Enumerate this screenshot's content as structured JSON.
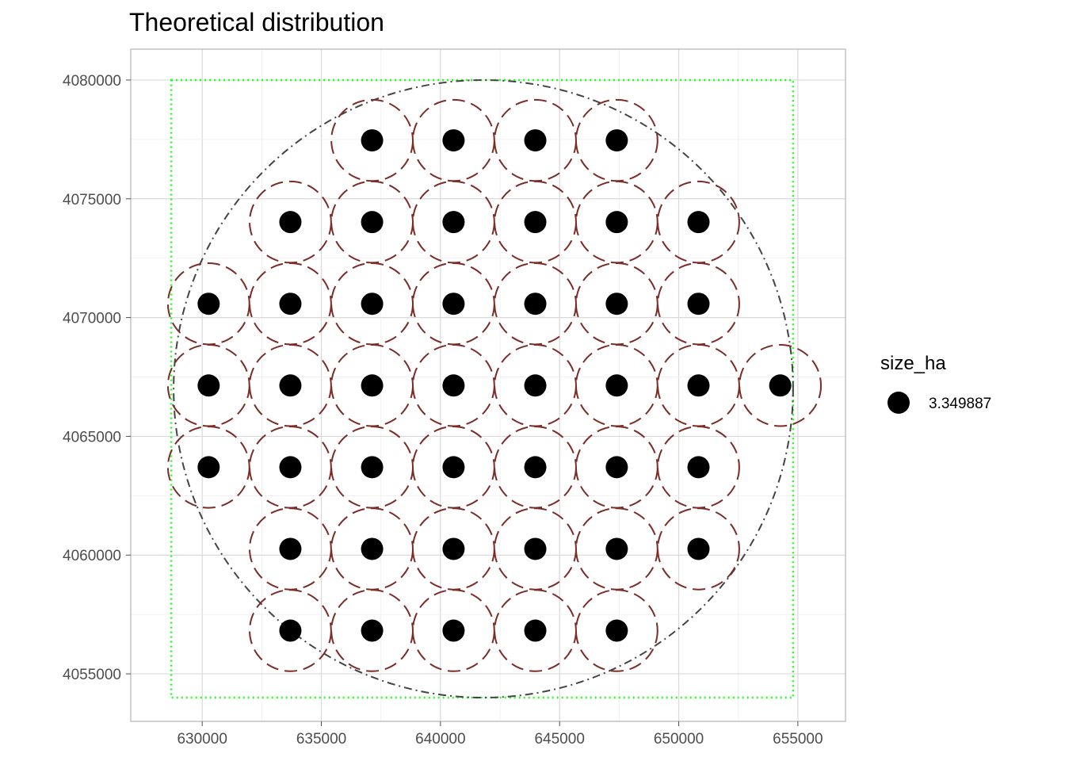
{
  "chart_data": {
    "type": "scatter",
    "title": "Theoretical distribution",
    "xlabel": "",
    "ylabel": "",
    "xlim": [
      627000,
      657000
    ],
    "ylim": [
      4053000,
      4081300
    ],
    "x_ticks": [
      630000,
      635000,
      640000,
      645000,
      650000,
      655000
    ],
    "y_ticks": [
      4055000,
      4060000,
      4065000,
      4070000,
      4075000,
      4080000
    ],
    "x_tick_labels": [
      "630000",
      "635000",
      "640000",
      "645000",
      "650000",
      "655000"
    ],
    "y_tick_labels": [
      "4055000",
      "4060000",
      "4065000",
      "4070000",
      "4075000",
      "4080000"
    ],
    "grid": true,
    "legend": {
      "title": "size_ha",
      "placement": "right",
      "entries": [
        {
          "label": "3.349887"
        }
      ]
    },
    "bounding_box": {
      "xmin": 628700,
      "xmax": 654800,
      "ymin": 4054000,
      "ymax": 4080000
    },
    "outer_circle": {
      "cx": 641800,
      "cy": 4067000,
      "r": 13000
    },
    "buffer_radius": 1710,
    "points": [
      {
        "x": 637130,
        "y": 4077460
      },
      {
        "x": 640550,
        "y": 4077460
      },
      {
        "x": 643980,
        "y": 4077460
      },
      {
        "x": 647400,
        "y": 4077460
      },
      {
        "x": 633700,
        "y": 4074020
      },
      {
        "x": 637130,
        "y": 4074020
      },
      {
        "x": 640550,
        "y": 4074020
      },
      {
        "x": 643980,
        "y": 4074020
      },
      {
        "x": 647400,
        "y": 4074020
      },
      {
        "x": 650830,
        "y": 4074020
      },
      {
        "x": 630270,
        "y": 4070580
      },
      {
        "x": 633700,
        "y": 4070580
      },
      {
        "x": 637130,
        "y": 4070580
      },
      {
        "x": 640550,
        "y": 4070580
      },
      {
        "x": 643980,
        "y": 4070580
      },
      {
        "x": 647400,
        "y": 4070580
      },
      {
        "x": 650830,
        "y": 4070580
      },
      {
        "x": 630270,
        "y": 4067140
      },
      {
        "x": 633700,
        "y": 4067140
      },
      {
        "x": 637130,
        "y": 4067140
      },
      {
        "x": 640550,
        "y": 4067140
      },
      {
        "x": 643980,
        "y": 4067140
      },
      {
        "x": 647400,
        "y": 4067140
      },
      {
        "x": 650830,
        "y": 4067140
      },
      {
        "x": 654260,
        "y": 4067140
      },
      {
        "x": 630270,
        "y": 4063700
      },
      {
        "x": 633700,
        "y": 4063700
      },
      {
        "x": 637130,
        "y": 4063700
      },
      {
        "x": 640550,
        "y": 4063700
      },
      {
        "x": 643980,
        "y": 4063700
      },
      {
        "x": 647400,
        "y": 4063700
      },
      {
        "x": 650830,
        "y": 4063700
      },
      {
        "x": 633700,
        "y": 4060260
      },
      {
        "x": 637130,
        "y": 4060260
      },
      {
        "x": 640550,
        "y": 4060260
      },
      {
        "x": 643980,
        "y": 4060260
      },
      {
        "x": 647400,
        "y": 4060260
      },
      {
        "x": 650830,
        "y": 4060260
      },
      {
        "x": 633700,
        "y": 4056820
      },
      {
        "x": 637130,
        "y": 4056820
      },
      {
        "x": 640550,
        "y": 4056820
      },
      {
        "x": 643980,
        "y": 4056820
      },
      {
        "x": 647400,
        "y": 4056820
      }
    ],
    "colors": {
      "point": "#000000",
      "buffer": "#7b2c26",
      "outer_circle": "#444444",
      "bounding_box": "#1dff1d",
      "grid": "#d9d9d9",
      "panel_border": "#b3b3b3"
    }
  }
}
